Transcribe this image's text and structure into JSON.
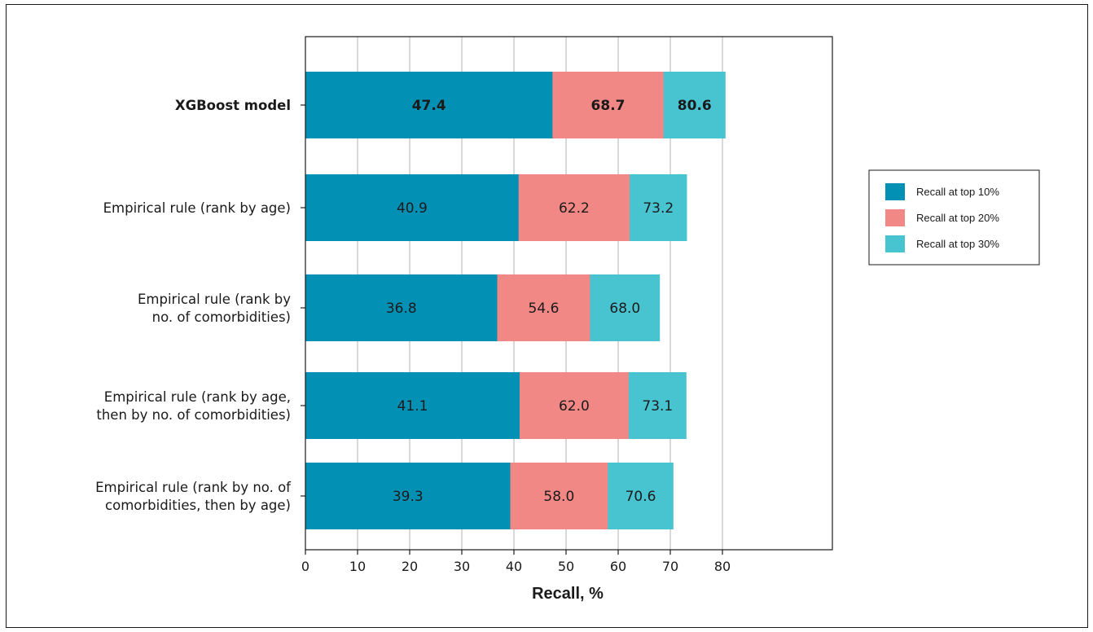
{
  "chart_data": {
    "type": "bar",
    "orientation": "horizontal",
    "stacked": false,
    "layout": "overlapping cumulative bars",
    "categories": [
      "XGBoost model",
      "Empirical rule (rank by age)",
      "Empirical rule (rank by no. of comorbidities)",
      "Empirical rule (rank by age, then by no. of comorbidities)",
      "Empirical rule (rank by no. of comorbidities, then by age)"
    ],
    "category_lines": [
      [
        "XGBoost model"
      ],
      [
        "Empirical rule (rank by age)"
      ],
      [
        "Empirical rule (rank by",
        "no. of comorbidities)"
      ],
      [
        "Empirical rule (rank by age,",
        "then by no. of comorbidities)"
      ],
      [
        "Empirical rule (rank by no. of",
        "comorbidities, then by age)"
      ]
    ],
    "highlighted_category": "XGBoost model",
    "series": [
      {
        "name": "Recall at top 10%",
        "color": "#0390b5",
        "values": [
          47.4,
          40.9,
          36.8,
          41.1,
          39.3
        ],
        "labels": [
          "47.4",
          "40.9",
          "36.8",
          "41.1",
          "39.3"
        ]
      },
      {
        "name": "Recall at top 20%",
        "color": "#f28886",
        "values": [
          68.7,
          62.2,
          54.6,
          62.0,
          58.0
        ],
        "labels": [
          "68.7",
          "62.2",
          "54.6",
          "62.0",
          "58.0"
        ]
      },
      {
        "name": "Recall at top 30%",
        "color": "#48c3d0",
        "values": [
          80.6,
          73.2,
          68.0,
          73.1,
          70.6
        ],
        "labels": [
          "80.6",
          "73.2",
          "68.0",
          "73.1",
          "70.6"
        ]
      }
    ],
    "xlabel": "Recall, %",
    "xlim": [
      0,
      85
    ],
    "xticks": [
      0,
      10,
      20,
      30,
      40,
      50,
      60,
      70,
      80
    ],
    "xtick_labels": [
      "0",
      "10",
      "20",
      "30",
      "40",
      "50",
      "60",
      "70",
      "80"
    ],
    "grid": "vertical",
    "legend_position": "right"
  }
}
